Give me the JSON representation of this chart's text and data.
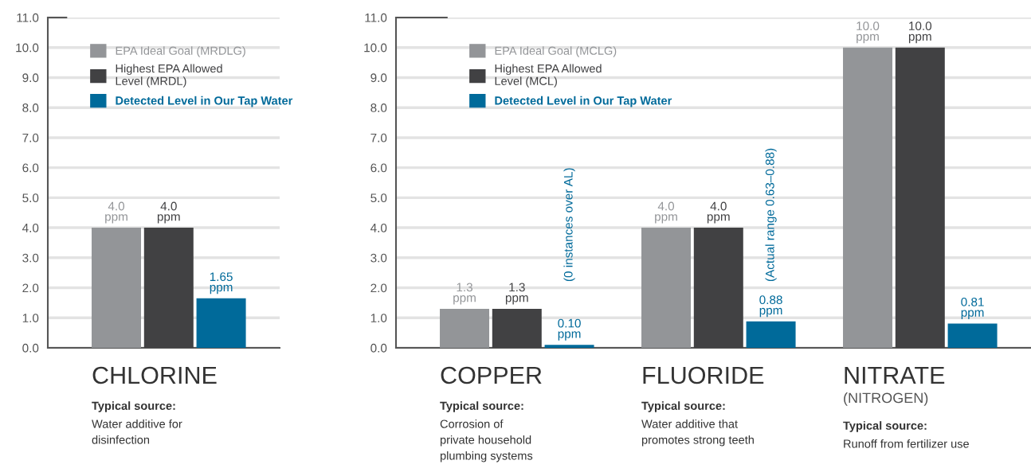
{
  "chart_data": [
    {
      "type": "bar",
      "categories": [
        "CHLORINE"
      ],
      "series": [
        {
          "name": "EPA Ideal Goal (MRDLG)",
          "color": "#939598",
          "values": [
            4.0
          ],
          "value_labels": [
            "4.0\nppm"
          ]
        },
        {
          "name": "Highest EPA Allowed\nLevel (MRDL)",
          "color": "#414143",
          "values": [
            4.0
          ],
          "value_labels": [
            "4.0\nppm"
          ]
        },
        {
          "name": "Detected Level in Our Tap Water",
          "color": "#006a9a",
          "values": [
            1.65
          ],
          "value_labels": [
            "1.65\nppm"
          ]
        }
      ],
      "ylim": [
        0,
        11
      ],
      "yticks": [
        {
          "value": 0,
          "label": "0.0"
        },
        {
          "value": 1,
          "label": "1.0"
        },
        {
          "value": 2,
          "label": "2.0"
        },
        {
          "value": 3,
          "label": "3.0"
        },
        {
          "value": 4,
          "label": "4.0"
        },
        {
          "value": 5,
          "label": "5.0"
        },
        {
          "value": 6,
          "label": "6.0"
        },
        {
          "value": 7,
          "label": "7.0"
        },
        {
          "value": 8,
          "label": "8.0"
        },
        {
          "value": 9,
          "label": "9.0"
        },
        {
          "value": 10,
          "label": "10.0"
        },
        {
          "value": 11,
          "label": "11.0"
        }
      ],
      "grid": "y",
      "legend": "top",
      "annotations": [
        "Typical source:\nWater additive for\ndisinfection"
      ]
    },
    {
      "type": "bar",
      "categories": [
        "COPPER",
        "FLUORIDE",
        "NITRATE\n(NITROGEN)"
      ],
      "series": [
        {
          "name": "EPA Ideal Goal (MCLG)",
          "color": "#939598",
          "values": [
            1.3,
            4.0,
            10.0
          ],
          "value_labels": [
            "1.3\nppm",
            "4.0\nppm",
            "10.0\nppm"
          ]
        },
        {
          "name": "Highest EPA Allowed\nLevel (MCL)",
          "color": "#414143",
          "values": [
            1.3,
            4.0,
            10.0
          ],
          "value_labels": [
            "1.3\nppm",
            "4.0\nppm",
            "10.0\nppm"
          ]
        },
        {
          "name": "Detected Level in Our Tap Water",
          "color": "#006a9a",
          "values": [
            0.1,
            0.88,
            0.81
          ],
          "value_labels": [
            "0.10\nppm",
            "0.88\nppm",
            "0.81\nppm"
          ]
        }
      ],
      "ylim": [
        0,
        11
      ],
      "yticks": [
        {
          "value": 0,
          "label": "0.0"
        },
        {
          "value": 1,
          "label": "1.0"
        },
        {
          "value": 2,
          "label": "2.0"
        },
        {
          "value": 3,
          "label": "3.0"
        },
        {
          "value": 4,
          "label": "4.0"
        },
        {
          "value": 5,
          "label": "5.0"
        },
        {
          "value": 6,
          "label": "6.0"
        },
        {
          "value": 7,
          "label": "7.0"
        },
        {
          "value": 8,
          "label": "8.0"
        },
        {
          "value": 9,
          "label": "9.0"
        },
        {
          "value": 10,
          "label": "10.0"
        },
        {
          "value": 11,
          "label": "11.0"
        }
      ],
      "grid": "y",
      "legend": "top left",
      "annotations": [
        "Typical source:\nCorrosion of\nprivate household\nplumbing systems",
        "Typical source:\nWater additive that\npromotes strong teeth",
        "Typical source:\nRunoff from fertilizer use",
        "(0 instances over AL)",
        "(Actual range 0.63–0.88)"
      ]
    }
  ]
}
